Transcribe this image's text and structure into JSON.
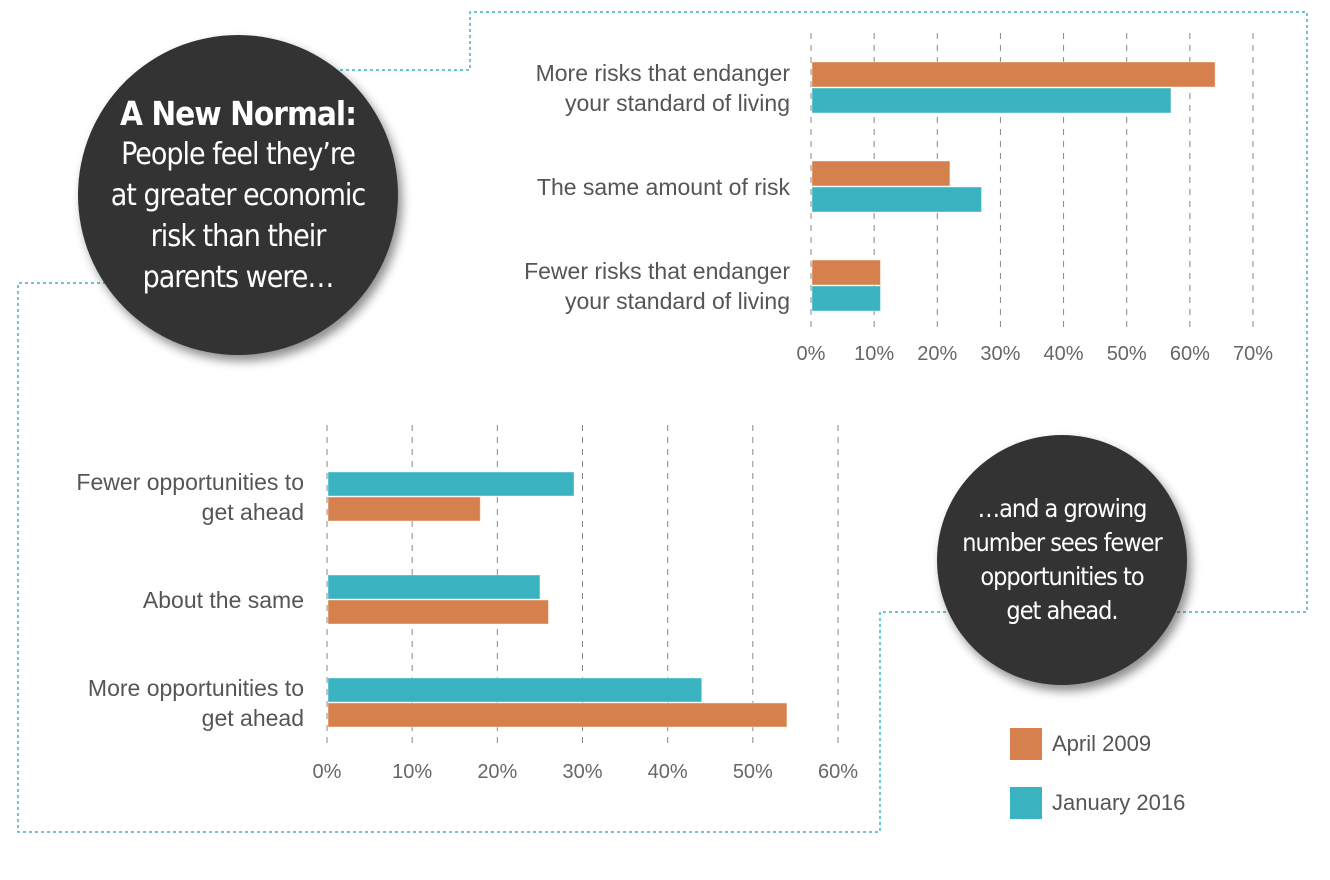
{
  "callout_top": {
    "heading": "A New Normal:",
    "lines": [
      "People feel they’re",
      "at greater economic",
      "risk than their",
      "parents were…"
    ]
  },
  "callout_bottom": {
    "lines": [
      "…and a growing",
      "number sees fewer",
      "opportunities to",
      "get ahead."
    ]
  },
  "legend": [
    {
      "label": "April 2009",
      "color": "#D6804E"
    },
    {
      "label": "January 2016",
      "color": "#3AB3C1"
    }
  ],
  "chart_data": [
    {
      "type": "bar",
      "orientation": "horizontal",
      "categories": [
        [
          "More risks that endanger",
          "your standard of living"
        ],
        [
          "The same amount of risk"
        ],
        [
          "Fewer risks that endanger",
          "your standard of living"
        ]
      ],
      "series": [
        {
          "name": "April 2009",
          "values": [
            64,
            22,
            11
          ],
          "color": "#D6804E"
        },
        {
          "name": "January 2016",
          "values": [
            57,
            27,
            11
          ],
          "color": "#3AB3C1"
        }
      ],
      "xlim": [
        0,
        70
      ],
      "ticks": [
        "0%",
        "10%",
        "20%",
        "30%",
        "40%",
        "50%",
        "60%",
        "70%"
      ],
      "grid": true
    },
    {
      "type": "bar",
      "orientation": "horizontal",
      "categories": [
        [
          "Fewer opportunities to",
          "get ahead"
        ],
        [
          "About the same"
        ],
        [
          "More opportunities to",
          "get ahead"
        ]
      ],
      "series": [
        {
          "name": "January 2016",
          "values": [
            29,
            25,
            44
          ],
          "color": "#3AB3C1"
        },
        {
          "name": "April 2009",
          "values": [
            18,
            26,
            54
          ],
          "color": "#D6804E"
        }
      ],
      "xlim": [
        0,
        60
      ],
      "ticks": [
        "0%",
        "10%",
        "20%",
        "30%",
        "40%",
        "50%",
        "60%"
      ],
      "grid": true
    }
  ]
}
